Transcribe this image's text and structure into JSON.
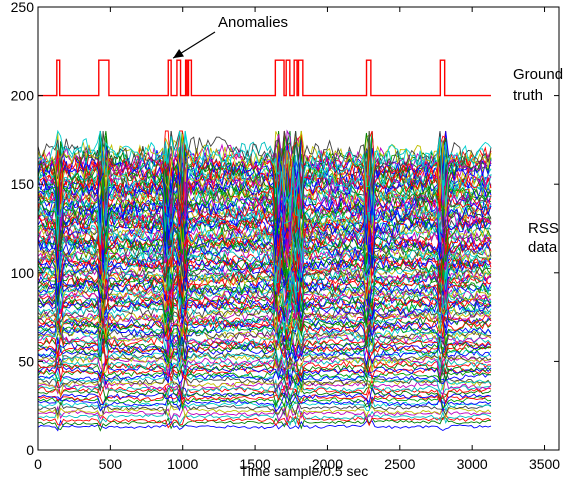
{
  "chart_data": {
    "type": "line",
    "xlabel": "Time sample/0.5 sec",
    "ylabel": "",
    "xlim": [
      0,
      3600
    ],
    "ylim": [
      0,
      250
    ],
    "x_ticks": [
      0,
      500,
      1000,
      1500,
      2000,
      2500,
      3000,
      3500
    ],
    "y_ticks": [
      0,
      50,
      100,
      150,
      200,
      250
    ],
    "grid": false,
    "series_x_range": [
      0,
      3130
    ],
    "ground_truth": {
      "color": "#ff0000",
      "baseline": 200,
      "high": 220,
      "x_start": 0,
      "x_end": 3130,
      "anomaly_intervals": [
        [
          130,
          150
        ],
        [
          420,
          490
        ],
        [
          900,
          920
        ],
        [
          960,
          985
        ],
        [
          1020,
          1030
        ],
        [
          1040,
          1060
        ],
        [
          1640,
          1700
        ],
        [
          1715,
          1740
        ],
        [
          1770,
          1790
        ],
        [
          1800,
          1830
        ],
        [
          2270,
          2300
        ],
        [
          2780,
          2810
        ]
      ]
    },
    "rss_data": {
      "series_count": 140,
      "y_min": 13,
      "y_max": 180,
      "colors": [
        "#0000ff",
        "#008000",
        "#ff0000",
        "#00bfbf",
        "#bf00bf",
        "#bfbf00",
        "#404040",
        "#00cfcf",
        "#0000ff",
        "#00a000",
        "#ff0000"
      ]
    },
    "annotations": [
      {
        "text": "Anomalies",
        "target_x": 920,
        "target_y": 220
      },
      {
        "text_lines": [
          "Ground",
          "truth"
        ]
      },
      {
        "text_lines": [
          "RSS",
          "data"
        ]
      }
    ]
  }
}
